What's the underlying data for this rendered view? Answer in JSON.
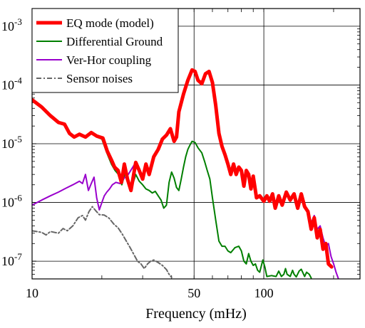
{
  "chart_data": {
    "type": "line",
    "title": "",
    "xlabel": "Frequency (mHz)",
    "ylabel": "",
    "x_scale": "log",
    "y_scale": "log",
    "xlim": [
      10,
      260
    ],
    "ylim": [
      5e-08,
      0.002
    ],
    "grid": true,
    "legend_position": "top-left",
    "x_ticks": [
      {
        "value": 10,
        "label": "10"
      },
      {
        "value": 50,
        "label": "50"
      },
      {
        "value": 100,
        "label": "100"
      }
    ],
    "y_ticks": [
      {
        "value": 0.001,
        "base": "10",
        "exp": "-3"
      },
      {
        "value": 0.0001,
        "base": "10",
        "exp": "-4"
      },
      {
        "value": 1e-05,
        "base": "10",
        "exp": "-5"
      },
      {
        "value": 1e-06,
        "base": "10",
        "exp": "-6"
      },
      {
        "value": 1e-07,
        "base": "10",
        "exp": "-7"
      }
    ],
    "series": [
      {
        "name": "EQ mode (model)",
        "color": "#ff0000",
        "dash": "solid",
        "width": 5,
        "points": [
          [
            10,
            5.6e-05
          ],
          [
            11,
            4.2e-05
          ],
          [
            12,
            3e-05
          ],
          [
            13,
            2.3e-05
          ],
          [
            13.8,
            2.15e-05
          ],
          [
            14.5,
            1.5e-05
          ],
          [
            15.2,
            1.3e-05
          ],
          [
            16,
            1.45e-05
          ],
          [
            17,
            1.3e-05
          ],
          [
            18,
            1.55e-05
          ],
          [
            19,
            1.35e-05
          ],
          [
            20.2,
            1.25e-05
          ],
          [
            21.1,
            7.5e-06
          ],
          [
            22,
            5.3e-06
          ],
          [
            22.7,
            4e-06
          ],
          [
            23.5,
            3.5e-06
          ],
          [
            24.3,
            2.2e-06
          ],
          [
            25,
            4.5e-06
          ],
          [
            25.8,
            2.5e-06
          ],
          [
            26.7,
            1.6e-06
          ],
          [
            28,
            4.8e-06
          ],
          [
            29,
            3.5e-06
          ],
          [
            30,
            2.5e-06
          ],
          [
            31,
            4.5e-06
          ],
          [
            32,
            3e-06
          ],
          [
            33.5,
            6e-06
          ],
          [
            35,
            8e-06
          ],
          [
            36.5,
            1.2e-05
          ],
          [
            38,
            1.4e-05
          ],
          [
            39.5,
            1.8e-05
          ],
          [
            41,
            1.1e-05
          ],
          [
            42,
            1.3e-05
          ],
          [
            43,
            3.5e-05
          ],
          [
            45,
            7e-05
          ],
          [
            47,
            0.00012
          ],
          [
            49,
            0.00018
          ],
          [
            50.5,
            0.00017
          ],
          [
            52,
            0.00012
          ],
          [
            54,
            0.000105
          ],
          [
            56,
            0.000155
          ],
          [
            58,
            0.00017
          ],
          [
            60,
            0.00011
          ],
          [
            62,
            4.5e-05
          ],
          [
            64,
            1.5e-05
          ],
          [
            66,
            9e-06
          ],
          [
            68,
            6.5e-06
          ],
          [
            70,
            4.5e-06
          ],
          [
            72,
            3e-06
          ],
          [
            74,
            4.5e-06
          ],
          [
            76,
            3e-06
          ],
          [
            78,
            4e-06
          ],
          [
            80,
            3.5e-06
          ],
          [
            82,
            1.9e-06
          ],
          [
            84,
            3.5e-06
          ],
          [
            86,
            3e-06
          ],
          [
            88,
            1.7e-06
          ],
          [
            90,
            2.8e-06
          ],
          [
            93,
            1.2e-06
          ],
          [
            96,
            1.3e-06
          ],
          [
            100,
            1.05e-06
          ],
          [
            103,
            1.3e-06
          ],
          [
            106,
            1.05e-06
          ],
          [
            109,
            1.4e-06
          ],
          [
            112,
            8e-07
          ],
          [
            116,
            1.3e-06
          ],
          [
            120,
            9e-07
          ],
          [
            125,
            1.5e-06
          ],
          [
            130,
            1.1e-06
          ],
          [
            135,
            1.4e-06
          ],
          [
            140,
            8e-07
          ],
          [
            145,
            1.4e-06
          ],
          [
            150,
            8.5e-07
          ],
          [
            155,
            7e-07
          ],
          [
            160,
            3.5e-07
          ],
          [
            165,
            5.5e-07
          ],
          [
            170,
            2.5e-07
          ],
          [
            175,
            3.5e-07
          ],
          [
            180,
            1.6e-07
          ],
          [
            185,
            2e-07
          ],
          [
            190,
            9e-08
          ],
          [
            196,
            8e-08
          ]
        ]
      },
      {
        "name": "Differential Ground",
        "color": "#007f00",
        "dash": "solid",
        "width": 2,
        "points": [
          [
            10,
            5.5e-05
          ],
          [
            11,
            4.1e-05
          ],
          [
            12,
            3e-05
          ],
          [
            13,
            2.3e-05
          ],
          [
            13.8,
            2.1e-05
          ],
          [
            14.5,
            1.45e-05
          ],
          [
            15.2,
            1.25e-05
          ],
          [
            16,
            1.4e-05
          ],
          [
            17,
            1.25e-05
          ],
          [
            18,
            1.5e-05
          ],
          [
            19,
            1.3e-05
          ],
          [
            20,
            1.2e-05
          ],
          [
            21,
            7e-06
          ],
          [
            22,
            4.5e-06
          ],
          [
            22.8,
            3.5e-06
          ],
          [
            23.6,
            3e-06
          ],
          [
            24.4,
            2e-06
          ],
          [
            25.2,
            3.2e-06
          ],
          [
            26,
            2.4e-06
          ],
          [
            26.8,
            1.7e-06
          ],
          [
            28,
            3e-06
          ],
          [
            29,
            2.3e-06
          ],
          [
            30,
            2e-06
          ],
          [
            31,
            1.7e-06
          ],
          [
            32,
            1.6e-06
          ],
          [
            33,
            1.45e-06
          ],
          [
            34,
            1.55e-06
          ],
          [
            35,
            1.3e-06
          ],
          [
            36,
            1.1e-06
          ],
          [
            37,
            8e-07
          ],
          [
            38,
            9e-07
          ],
          [
            39,
            2.2e-06
          ],
          [
            40,
            3.3e-06
          ],
          [
            41,
            2.6e-06
          ],
          [
            42,
            1.8e-06
          ],
          [
            43,
            1.6e-06
          ],
          [
            44,
            2.5e-06
          ],
          [
            45,
            4e-06
          ],
          [
            46,
            6e-06
          ],
          [
            47,
            8e-06
          ],
          [
            48,
            9.5e-06
          ],
          [
            49,
            1.1e-05
          ],
          [
            50.5,
            1.05e-05
          ],
          [
            52,
            8.5e-06
          ],
          [
            54,
            7e-06
          ],
          [
            55.5,
            5e-06
          ],
          [
            57,
            3.5e-06
          ],
          [
            58.5,
            2.5e-06
          ],
          [
            60,
            1.2e-06
          ],
          [
            62,
            5e-07
          ],
          [
            64,
            2.2e-07
          ],
          [
            66,
            1.8e-07
          ],
          [
            68,
            1.8e-07
          ],
          [
            70,
            1.5e-07
          ],
          [
            72,
            1.4e-07
          ],
          [
            75,
            1.7e-07
          ],
          [
            78,
            1.8e-07
          ],
          [
            80,
            1.5e-07
          ],
          [
            82,
            1e-07
          ],
          [
            84,
            9e-08
          ],
          [
            86,
            1.35e-07
          ],
          [
            88,
            1e-07
          ],
          [
            90,
            8.5e-08
          ],
          [
            92,
            9e-08
          ],
          [
            94,
            7e-08
          ],
          [
            96,
            6.5e-08
          ],
          [
            99,
            1.05e-07
          ],
          [
            101,
            8e-08
          ],
          [
            103,
            5.5e-08
          ],
          [
            108,
            5.7e-08
          ],
          [
            113,
            5.5e-08
          ],
          [
            116,
            6.8e-08
          ],
          [
            119,
            5.5e-08
          ],
          [
            122,
            6e-08
          ],
          [
            124,
            7.5e-08
          ],
          [
            126,
            6e-08
          ],
          [
            130,
            5.5e-08
          ],
          [
            133,
            7e-08
          ],
          [
            135,
            6e-08
          ],
          [
            138,
            5.4e-08
          ],
          [
            142,
            6.8e-08
          ],
          [
            145,
            7.3e-08
          ],
          [
            150,
            5.5e-08
          ],
          [
            153,
            6.5e-08
          ],
          [
            157,
            6e-08
          ],
          [
            160,
            5.2e-08
          ]
        ]
      },
      {
        "name": "Ver-Hor coupling",
        "color": "#9900cc",
        "dash": "solid",
        "width": 2,
        "points": [
          [
            10,
            9e-07
          ],
          [
            11,
            1.1e-06
          ],
          [
            12,
            1.3e-06
          ],
          [
            13,
            1.5e-06
          ],
          [
            14,
            1.75e-06
          ],
          [
            15,
            2e-06
          ],
          [
            16,
            2.3e-06
          ],
          [
            16.5,
            2.1e-06
          ],
          [
            17,
            3e-06
          ],
          [
            17.5,
            1.6e-06
          ],
          [
            18,
            2.1e-06
          ],
          [
            18.5,
            2.7e-06
          ],
          [
            19,
            1.2e-06
          ],
          [
            19.5,
            7.5e-07
          ],
          [
            20,
            1e-06
          ],
          [
            20.5,
            1.3e-06
          ],
          [
            21,
            1.5e-06
          ],
          [
            21.6,
            1.7e-06
          ],
          [
            22.2,
            2e-06
          ],
          [
            23,
            2.2e-06
          ],
          [
            24,
            2.1e-06
          ],
          [
            25,
            2.6e-06
          ],
          [
            26,
            3e-06
          ],
          [
            27,
            3.8e-06
          ],
          [
            28,
            4.8e-06
          ],
          [
            29,
            3.5e-06
          ],
          [
            30,
            2.5e-06
          ],
          [
            31,
            4.5e-06
          ],
          [
            32,
            3e-06
          ],
          [
            33.5,
            6e-06
          ],
          [
            35,
            8e-06
          ],
          [
            36.5,
            1.2e-05
          ],
          [
            38,
            1.35e-05
          ],
          [
            39.5,
            1.7e-05
          ],
          [
            41,
            1.1e-05
          ],
          [
            42,
            1.3e-05
          ],
          [
            43,
            3.5e-05
          ],
          [
            45,
            7e-05
          ],
          [
            47,
            0.00012
          ],
          [
            49,
            0.000175
          ],
          [
            50.5,
            0.000165
          ],
          [
            52,
            0.00012
          ],
          [
            54,
            0.000105
          ],
          [
            56,
            0.00015
          ],
          [
            58,
            0.000165
          ],
          [
            60,
            0.00011
          ],
          [
            62,
            4.5e-05
          ],
          [
            64,
            1.5e-05
          ],
          [
            66,
            9e-06
          ],
          [
            68,
            6.5e-06
          ],
          [
            70,
            4.5e-06
          ],
          [
            72,
            3e-06
          ],
          [
            74,
            4.5e-06
          ],
          [
            76,
            3e-06
          ],
          [
            78,
            4e-06
          ],
          [
            80,
            3.5e-06
          ],
          [
            82,
            1.9e-06
          ],
          [
            84,
            3.5e-06
          ],
          [
            86,
            3e-06
          ],
          [
            88,
            1.7e-06
          ],
          [
            90,
            2.8e-06
          ],
          [
            93,
            1.2e-06
          ],
          [
            96,
            1.3e-06
          ],
          [
            100,
            1.05e-06
          ],
          [
            103,
            1.3e-06
          ],
          [
            106,
            1.05e-06
          ],
          [
            109,
            1.4e-06
          ],
          [
            112,
            8e-07
          ],
          [
            116,
            1.3e-06
          ],
          [
            120,
            9e-07
          ],
          [
            125,
            1.5e-06
          ],
          [
            130,
            1.1e-06
          ],
          [
            135,
            1.4e-06
          ],
          [
            140,
            8e-07
          ],
          [
            145,
            1.4e-06
          ],
          [
            150,
            8.5e-07
          ],
          [
            155,
            7.5e-07
          ],
          [
            160,
            4.5e-07
          ],
          [
            165,
            6e-07
          ],
          [
            170,
            3.5e-07
          ],
          [
            175,
            4e-07
          ],
          [
            180,
            2.5e-07
          ],
          [
            185,
            1.8e-07
          ],
          [
            190,
            2e-07
          ],
          [
            195,
            1.2e-07
          ],
          [
            200,
            9e-08
          ],
          [
            205,
            6.5e-08
          ],
          [
            210,
            5e-08
          ]
        ]
      },
      {
        "name": "Sensor noises",
        "color": "#666666",
        "dash": "dashdot",
        "width": 2,
        "points": [
          [
            10,
            3.3e-07
          ],
          [
            11,
            3.1e-07
          ],
          [
            11.5,
            2.8e-07
          ],
          [
            12,
            3.2e-07
          ],
          [
            13,
            3e-07
          ],
          [
            13.6,
            3.6e-07
          ],
          [
            14.2,
            3.3e-07
          ],
          [
            15,
            4e-07
          ],
          [
            15.8,
            5.5e-07
          ],
          [
            16.5,
            6e-07
          ],
          [
            17,
            5e-07
          ],
          [
            17.6,
            7e-07
          ],
          [
            18.2,
            8.5e-07
          ],
          [
            18.8,
            7.3e-07
          ],
          [
            19.5,
            6.2e-07
          ],
          [
            20.5,
            6.1e-07
          ],
          [
            21.5,
            5.4e-07
          ],
          [
            22.5,
            4.3e-07
          ],
          [
            23.5,
            3.7e-07
          ],
          [
            24.5,
            2.9e-07
          ],
          [
            25.5,
            2.2e-07
          ],
          [
            26.5,
            1.7e-07
          ],
          [
            27.5,
            1.3e-07
          ],
          [
            28.5,
            1e-07
          ],
          [
            29.5,
            9e-08
          ],
          [
            30.5,
            7.5e-08
          ],
          [
            31.5,
            9e-08
          ],
          [
            32.5,
            1e-07
          ],
          [
            33.5,
            1.05e-07
          ],
          [
            35,
            9.5e-08
          ],
          [
            36.5,
            8.5e-08
          ],
          [
            38,
            7.2e-08
          ],
          [
            39,
            6e-08
          ],
          [
            40,
            5.3e-08
          ]
        ]
      }
    ]
  }
}
